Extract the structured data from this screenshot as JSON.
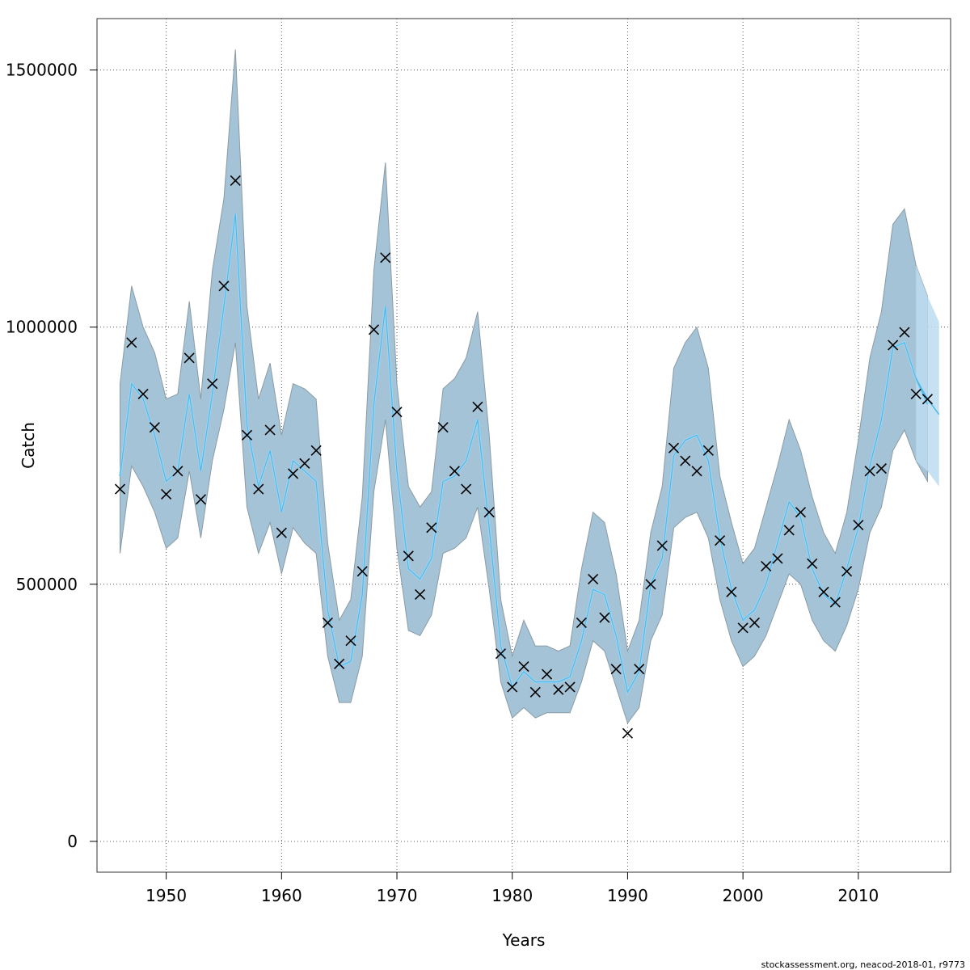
{
  "chart_data": {
    "type": "line",
    "xlabel": "Years",
    "ylabel": "Catch",
    "xlim": [
      1944,
      2018
    ],
    "ylim": [
      -60000,
      1600000
    ],
    "x_ticks": [
      1950,
      1960,
      1970,
      1980,
      1990,
      2000,
      2010
    ],
    "y_ticks": [
      0,
      500000,
      1000000,
      1500000
    ],
    "grid": true,
    "legend": "none",
    "colors": {
      "band": "#a5c3d6",
      "band_edge": "#8a9ba5",
      "forecast_band": "#bcdcee",
      "line": "#4db8ec",
      "marker": "#000000"
    },
    "fit_years": [
      1946,
      1947,
      1948,
      1949,
      1950,
      1951,
      1952,
      1953,
      1954,
      1955,
      1956,
      1957,
      1958,
      1959,
      1960,
      1961,
      1962,
      1963,
      1964,
      1965,
      1966,
      1967,
      1968,
      1969,
      1970,
      1971,
      1972,
      1973,
      1974,
      1975,
      1976,
      1977,
      1978,
      1979,
      1980,
      1981,
      1982,
      1983,
      1984,
      1985,
      1986,
      1987,
      1988,
      1989,
      1990,
      1991,
      1992,
      1993,
      1994,
      1995,
      1996,
      1997,
      1998,
      1999,
      2000,
      2001,
      2002,
      2003,
      2004,
      2005,
      2006,
      2007,
      2008,
      2009,
      2010,
      2011,
      2012,
      2013,
      2014,
      2015,
      2016
    ],
    "estimate": [
      710000,
      890000,
      860000,
      790000,
      700000,
      720000,
      870000,
      720000,
      870000,
      1040000,
      1220000,
      810000,
      690000,
      760000,
      640000,
      740000,
      720000,
      700000,
      450000,
      340000,
      350000,
      480000,
      850000,
      1040000,
      720000,
      530000,
      510000,
      550000,
      700000,
      710000,
      740000,
      820000,
      610000,
      380000,
      300000,
      330000,
      310000,
      310000,
      310000,
      320000,
      390000,
      490000,
      480000,
      400000,
      290000,
      330000,
      500000,
      550000,
      750000,
      780000,
      790000,
      740000,
      590000,
      490000,
      430000,
      450000,
      500000,
      580000,
      660000,
      630000,
      530000,
      480000,
      460000,
      530000,
      610000,
      730000,
      820000,
      960000,
      970000,
      900000,
      850000
    ],
    "upper": [
      890000,
      1080000,
      1000000,
      950000,
      860000,
      870000,
      1050000,
      860000,
      1110000,
      1250000,
      1540000,
      1040000,
      860000,
      930000,
      790000,
      890000,
      880000,
      860000,
      580000,
      430000,
      470000,
      670000,
      1110000,
      1320000,
      890000,
      690000,
      650000,
      680000,
      880000,
      900000,
      940000,
      1030000,
      790000,
      470000,
      360000,
      430000,
      380000,
      380000,
      370000,
      380000,
      530000,
      640000,
      620000,
      520000,
      370000,
      430000,
      600000,
      690000,
      920000,
      970000,
      1000000,
      920000,
      710000,
      620000,
      540000,
      570000,
      650000,
      730000,
      820000,
      760000,
      670000,
      600000,
      560000,
      640000,
      780000,
      940000,
      1030000,
      1200000,
      1230000,
      1120000,
      1060000
    ],
    "lower": [
      560000,
      730000,
      690000,
      640000,
      570000,
      590000,
      720000,
      590000,
      740000,
      840000,
      970000,
      650000,
      560000,
      620000,
      520000,
      610000,
      580000,
      560000,
      360000,
      270000,
      270000,
      360000,
      680000,
      820000,
      570000,
      410000,
      400000,
      440000,
      560000,
      570000,
      590000,
      650000,
      490000,
      310000,
      240000,
      260000,
      240000,
      250000,
      250000,
      250000,
      310000,
      390000,
      370000,
      300000,
      230000,
      260000,
      390000,
      440000,
      610000,
      630000,
      640000,
      590000,
      470000,
      390000,
      340000,
      360000,
      400000,
      460000,
      520000,
      500000,
      430000,
      390000,
      370000,
      420000,
      490000,
      600000,
      650000,
      760000,
      800000,
      740000,
      700000
    ],
    "forecast_years": [
      2015,
      2016,
      2017
    ],
    "forecast_estimate": [
      900000,
      860000,
      830000
    ],
    "forecast_upper": [
      1120000,
      1060000,
      1010000
    ],
    "forecast_lower": [
      740000,
      720000,
      690000
    ],
    "observed_years": [
      1946,
      1947,
      1948,
      1949,
      1950,
      1951,
      1952,
      1953,
      1954,
      1955,
      1956,
      1957,
      1958,
      1959,
      1960,
      1961,
      1962,
      1963,
      1964,
      1965,
      1966,
      1967,
      1968,
      1969,
      1970,
      1971,
      1972,
      1973,
      1974,
      1975,
      1976,
      1977,
      1978,
      1979,
      1980,
      1981,
      1982,
      1983,
      1984,
      1985,
      1986,
      1987,
      1988,
      1989,
      1990,
      1991,
      1992,
      1993,
      1994,
      1995,
      1996,
      1997,
      1998,
      1999,
      2000,
      2001,
      2002,
      2003,
      2004,
      2005,
      2006,
      2007,
      2008,
      2009,
      2010,
      2011,
      2012,
      2013,
      2014,
      2015,
      2016
    ],
    "observed": [
      685000,
      970000,
      870000,
      805000,
      675000,
      720000,
      940000,
      665000,
      890000,
      1080000,
      1285000,
      790000,
      685000,
      800000,
      600000,
      715000,
      735000,
      760000,
      425000,
      345000,
      390000,
      525000,
      995000,
      1135000,
      835000,
      555000,
      480000,
      610000,
      805000,
      720000,
      685000,
      845000,
      640000,
      365000,
      300000,
      340000,
      290000,
      325000,
      295000,
      300000,
      425000,
      510000,
      435000,
      335000,
      210000,
      335000,
      500000,
      575000,
      765000,
      740000,
      720000,
      760000,
      585000,
      485000,
      415000,
      425000,
      535000,
      550000,
      605000,
      640000,
      540000,
      485000,
      465000,
      525000,
      615000,
      720000,
      725000,
      965000,
      990000,
      870000,
      860000
    ],
    "footer": "stockassessment.org, neacod-2018-01, r9773"
  }
}
